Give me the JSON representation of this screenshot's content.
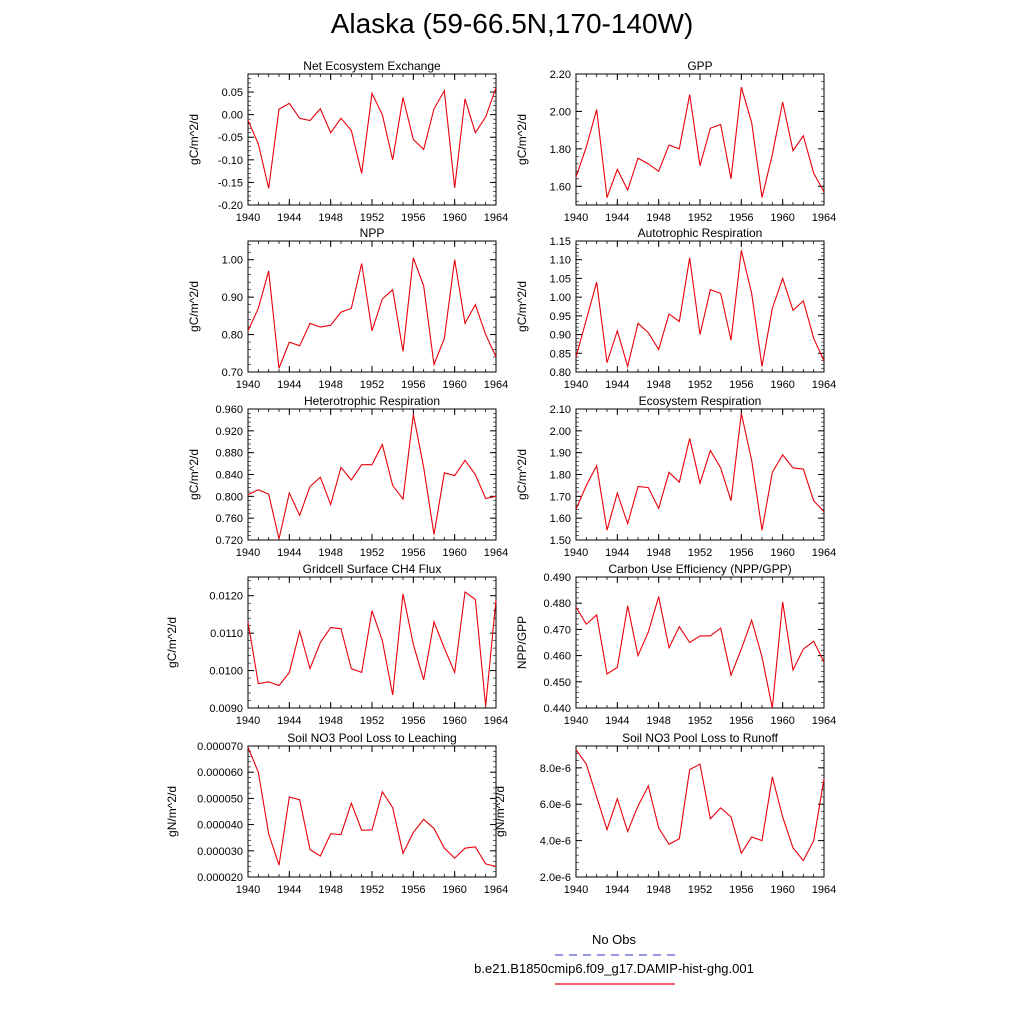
{
  "title": "Alaska (59-66.5N,170-140W)",
  "legend": {
    "obs_label": "No Obs",
    "obs_color": "#5b5bd6",
    "case_label": "b.e21.B1850cmip6.f09_g17.DAMIP-hist-ghg.001",
    "case_color": "#e8000b"
  },
  "chart_data": [
    {
      "type": "line",
      "title": "Net Ecosystem Exchange",
      "ylabel": "gC/m^2/d",
      "xlim": [
        1940,
        1964
      ],
      "ylim": [
        -0.2,
        0.09
      ],
      "xticks": [
        "1940",
        "1944",
        "1948",
        "1952",
        "1956",
        "1960",
        "1964"
      ],
      "yticks": [
        "0.05",
        "0.00",
        "-0.05",
        "-0.10",
        "-0.15",
        "-0.20"
      ],
      "ytick_values": [
        0.05,
        0.0,
        -0.05,
        -0.1,
        -0.15,
        -0.2
      ],
      "series": [
        {
          "x": [
            1940,
            1941,
            1942,
            1943,
            1944,
            1945,
            1946,
            1947,
            1948,
            1949,
            1950,
            1951,
            1952,
            1953,
            1954,
            1955,
            1956,
            1957,
            1958,
            1959,
            1960,
            1961,
            1962,
            1963,
            1964
          ],
          "values": [
            -0.012,
            -0.065,
            -0.163,
            0.012,
            0.025,
            -0.008,
            -0.013,
            0.013,
            -0.04,
            -0.008,
            -0.035,
            -0.13,
            0.047,
            0.0,
            -0.1,
            0.038,
            -0.055,
            -0.077,
            0.013,
            0.053,
            -0.162,
            0.035,
            -0.04,
            -0.005,
            0.06
          ]
        }
      ]
    },
    {
      "type": "line",
      "title": "GPP",
      "ylabel": "gC/m^2/d",
      "xlim": [
        1940,
        1964
      ],
      "ylim": [
        1.5,
        2.2
      ],
      "xticks": [
        "1940",
        "1944",
        "1948",
        "1952",
        "1956",
        "1960",
        "1964"
      ],
      "yticks": [
        "2.20",
        "2.00",
        "1.80",
        "1.60"
      ],
      "ytick_values": [
        2.2,
        2.0,
        1.8,
        1.6
      ],
      "series": [
        {
          "x": [
            1940,
            1941,
            1942,
            1943,
            1944,
            1945,
            1946,
            1947,
            1948,
            1949,
            1950,
            1951,
            1952,
            1953,
            1954,
            1955,
            1956,
            1957,
            1958,
            1959,
            1960,
            1961,
            1962,
            1963,
            1964
          ],
          "values": [
            1.65,
            1.81,
            2.01,
            1.54,
            1.69,
            1.58,
            1.75,
            1.72,
            1.68,
            1.82,
            1.8,
            2.09,
            1.71,
            1.91,
            1.93,
            1.64,
            2.13,
            1.94,
            1.54,
            1.77,
            2.05,
            1.79,
            1.87,
            1.67,
            1.57
          ]
        }
      ]
    },
    {
      "type": "line",
      "title": "NPP",
      "ylabel": "gC/m^2/d",
      "xlim": [
        1940,
        1964
      ],
      "ylim": [
        0.7,
        1.05
      ],
      "xticks": [
        "1940",
        "1944",
        "1948",
        "1952",
        "1956",
        "1960",
        "1964"
      ],
      "yticks": [
        "1.00",
        "0.90",
        "0.80",
        "0.70"
      ],
      "ytick_values": [
        1.0,
        0.9,
        0.8,
        0.7
      ],
      "series": [
        {
          "x": [
            1940,
            1941,
            1942,
            1943,
            1944,
            1945,
            1946,
            1947,
            1948,
            1949,
            1950,
            1951,
            1952,
            1953,
            1954,
            1955,
            1956,
            1957,
            1958,
            1959,
            1960,
            1961,
            1962,
            1963,
            1964
          ],
          "values": [
            0.81,
            0.87,
            0.97,
            0.71,
            0.78,
            0.77,
            0.83,
            0.82,
            0.825,
            0.86,
            0.87,
            0.99,
            0.81,
            0.895,
            0.92,
            0.755,
            1.005,
            0.93,
            0.72,
            0.79,
            1.0,
            0.83,
            0.88,
            0.8,
            0.74
          ]
        }
      ]
    },
    {
      "type": "line",
      "title": "Autotrophic Respiration",
      "ylabel": "gC/m^2/d",
      "xlim": [
        1940,
        1964
      ],
      "ylim": [
        0.8,
        1.15
      ],
      "xticks": [
        "1940",
        "1944",
        "1948",
        "1952",
        "1956",
        "1960",
        "1964"
      ],
      "yticks": [
        "1.15",
        "1.10",
        "1.05",
        "1.00",
        "0.95",
        "0.90",
        "0.85",
        "0.80"
      ],
      "ytick_values": [
        1.15,
        1.1,
        1.05,
        1.0,
        0.95,
        0.9,
        0.85,
        0.8
      ],
      "series": [
        {
          "x": [
            1940,
            1941,
            1942,
            1943,
            1944,
            1945,
            1946,
            1947,
            1948,
            1949,
            1950,
            1951,
            1952,
            1953,
            1954,
            1955,
            1956,
            1957,
            1958,
            1959,
            1960,
            1961,
            1962,
            1963,
            1964
          ],
          "values": [
            0.84,
            0.94,
            1.04,
            0.825,
            0.91,
            0.815,
            0.93,
            0.905,
            0.86,
            0.955,
            0.935,
            1.105,
            0.9,
            1.02,
            1.01,
            0.885,
            1.125,
            1.01,
            0.815,
            0.97,
            1.05,
            0.965,
            0.99,
            0.89,
            0.83
          ]
        }
      ]
    },
    {
      "type": "line",
      "title": "Heterotrophic Respiration",
      "ylabel": "gC/m^2/d",
      "xlim": [
        1940,
        1964
      ],
      "ylim": [
        0.72,
        0.96
      ],
      "xticks": [
        "1940",
        "1944",
        "1948",
        "1952",
        "1956",
        "1960",
        "1964"
      ],
      "yticks": [
        "0.960",
        "0.920",
        "0.880",
        "0.840",
        "0.800",
        "0.760",
        "0.720"
      ],
      "ytick_values": [
        0.96,
        0.92,
        0.88,
        0.84,
        0.8,
        0.76,
        0.72
      ],
      "series": [
        {
          "x": [
            1940,
            1941,
            1942,
            1943,
            1944,
            1945,
            1946,
            1947,
            1948,
            1949,
            1950,
            1951,
            1952,
            1953,
            1954,
            1955,
            1956,
            1957,
            1958,
            1959,
            1960,
            1961,
            1962,
            1963,
            1964
          ],
          "values": [
            0.803,
            0.812,
            0.804,
            0.722,
            0.806,
            0.765,
            0.818,
            0.835,
            0.785,
            0.853,
            0.83,
            0.858,
            0.858,
            0.895,
            0.82,
            0.795,
            0.95,
            0.853,
            0.73,
            0.843,
            0.838,
            0.866,
            0.84,
            0.796,
            0.8
          ]
        }
      ]
    },
    {
      "type": "line",
      "title": "Ecosystem Respiration",
      "ylabel": "gC/m^2/d",
      "xlim": [
        1940,
        1964
      ],
      "ylim": [
        1.5,
        2.1
      ],
      "xticks": [
        "1940",
        "1944",
        "1948",
        "1952",
        "1956",
        "1960",
        "1964"
      ],
      "yticks": [
        "2.10",
        "2.00",
        "1.90",
        "1.80",
        "1.70",
        "1.60",
        "1.50"
      ],
      "ytick_values": [
        2.1,
        2.0,
        1.9,
        1.8,
        1.7,
        1.6,
        1.5
      ],
      "series": [
        {
          "x": [
            1940,
            1941,
            1942,
            1943,
            1944,
            1945,
            1946,
            1947,
            1948,
            1949,
            1950,
            1951,
            1952,
            1953,
            1954,
            1955,
            1956,
            1957,
            1958,
            1959,
            1960,
            1961,
            1962,
            1963,
            1964
          ],
          "values": [
            1.64,
            1.75,
            1.84,
            1.545,
            1.715,
            1.575,
            1.745,
            1.74,
            1.645,
            1.81,
            1.765,
            1.965,
            1.76,
            1.91,
            1.83,
            1.68,
            2.08,
            1.865,
            1.545,
            1.81,
            1.89,
            1.83,
            1.825,
            1.68,
            1.63
          ]
        }
      ]
    },
    {
      "type": "line",
      "title": "Gridcell Surface CH4 Flux",
      "ylabel": "gC/m^2/d",
      "xlim": [
        1940,
        1964
      ],
      "ylim": [
        0.009,
        0.0125
      ],
      "xticks": [
        "1940",
        "1944",
        "1948",
        "1952",
        "1956",
        "1960",
        "1964"
      ],
      "yticks": [
        "0.0120",
        "0.0110",
        "0.0100",
        "0.0090"
      ],
      "ytick_values": [
        0.012,
        0.011,
        0.01,
        0.009
      ],
      "series": [
        {
          "x": [
            1940,
            1941,
            1942,
            1943,
            1944,
            1945,
            1946,
            1947,
            1948,
            1949,
            1950,
            1951,
            1952,
            1953,
            1954,
            1955,
            1956,
            1957,
            1958,
            1959,
            1960,
            1961,
            1962,
            1963,
            1964
          ],
          "values": [
            0.0113,
            0.00965,
            0.0097,
            0.0096,
            0.00995,
            0.01105,
            0.01005,
            0.01075,
            0.01115,
            0.01112,
            0.01005,
            0.00995,
            0.0116,
            0.0108,
            0.00935,
            0.01205,
            0.0107,
            0.00975,
            0.0113,
            0.0106,
            0.00995,
            0.0121,
            0.0119,
            0.00905,
            0.0119
          ]
        }
      ]
    },
    {
      "type": "line",
      "title": "Carbon Use Efficiency (NPP/GPP)",
      "ylabel": "NPP/GPP",
      "xlim": [
        1940,
        1964
      ],
      "ylim": [
        0.44,
        0.49
      ],
      "xticks": [
        "1940",
        "1944",
        "1948",
        "1952",
        "1956",
        "1960",
        "1964"
      ],
      "yticks": [
        "0.490",
        "0.480",
        "0.470",
        "0.460",
        "0.450",
        "0.440"
      ],
      "ytick_values": [
        0.49,
        0.48,
        0.47,
        0.46,
        0.45,
        0.44
      ],
      "series": [
        {
          "x": [
            1940,
            1941,
            1942,
            1943,
            1944,
            1945,
            1946,
            1947,
            1948,
            1949,
            1950,
            1951,
            1952,
            1953,
            1954,
            1955,
            1956,
            1957,
            1958,
            1959,
            1960,
            1961,
            1962,
            1963,
            1964
          ],
          "values": [
            0.4785,
            0.472,
            0.4755,
            0.453,
            0.4555,
            0.479,
            0.46,
            0.469,
            0.4825,
            0.463,
            0.471,
            0.465,
            0.4675,
            0.4675,
            0.4705,
            0.4525,
            0.4625,
            0.4735,
            0.4595,
            0.44,
            0.4805,
            0.4545,
            0.4625,
            0.4655,
            0.4575
          ]
        }
      ]
    },
    {
      "type": "line",
      "title": "Soil NO3 Pool Loss to Leaching",
      "ylabel": "gN/m^2/d",
      "xlim": [
        1940,
        1964
      ],
      "ylim": [
        2e-05,
        7e-05
      ],
      "xticks": [
        "1940",
        "1944",
        "1948",
        "1952",
        "1956",
        "1960",
        "1964"
      ],
      "yticks": [
        "0.000070",
        "0.000060",
        "0.000050",
        "0.000040",
        "0.000030",
        "0.000020"
      ],
      "ytick_values": [
        7e-05,
        6e-05,
        5e-05,
        4e-05,
        3e-05,
        2e-05
      ],
      "series": [
        {
          "x": [
            1940,
            1941,
            1942,
            1943,
            1944,
            1945,
            1946,
            1947,
            1948,
            1949,
            1950,
            1951,
            1952,
            1953,
            1954,
            1955,
            1956,
            1957,
            1958,
            1959,
            1960,
            1961,
            1962,
            1963,
            1964
          ],
          "values": [
            6.95e-05,
            6e-05,
            3.65e-05,
            2.45e-05,
            5.05e-05,
            4.95e-05,
            3.05e-05,
            2.8e-05,
            3.65e-05,
            3.62e-05,
            4.82e-05,
            3.78e-05,
            3.8e-05,
            5.25e-05,
            4.65e-05,
            2.9e-05,
            3.7e-05,
            4.2e-05,
            3.85e-05,
            3.1e-05,
            2.72e-05,
            3.1e-05,
            3.15e-05,
            2.5e-05,
            2.4e-05
          ]
        }
      ]
    },
    {
      "type": "line",
      "title": "Soil NO3 Pool Loss to Runoff",
      "ylabel": "gN/m^2/d",
      "xlim": [
        1940,
        1964
      ],
      "ylim": [
        2e-06,
        9.2e-06
      ],
      "xticks": [
        "1940",
        "1944",
        "1948",
        "1952",
        "1956",
        "1960",
        "1964"
      ],
      "yticks": [
        "8.0e-6",
        "6.0e-6",
        "4.0e-6",
        "2.0e-6"
      ],
      "ytick_values": [
        8e-06,
        6e-06,
        4e-06,
        2e-06
      ],
      "series": [
        {
          "x": [
            1940,
            1941,
            1942,
            1943,
            1944,
            1945,
            1946,
            1947,
            1948,
            1949,
            1950,
            1951,
            1952,
            1953,
            1954,
            1955,
            1956,
            1957,
            1958,
            1959,
            1960,
            1961,
            1962,
            1963,
            1964
          ],
          "values": [
            9e-06,
            8.2e-06,
            6.4e-06,
            4.6e-06,
            6.3e-06,
            4.5e-06,
            5.9e-06,
            7e-06,
            4.7e-06,
            3.8e-06,
            4.1e-06,
            7.9e-06,
            8.2e-06,
            5.2e-06,
            5.8e-06,
            5.3e-06,
            3.3e-06,
            4.2e-06,
            4e-06,
            7.5e-06,
            5.3e-06,
            3.6e-06,
            2.9e-06,
            4e-06,
            7.4e-06
          ]
        }
      ]
    }
  ]
}
